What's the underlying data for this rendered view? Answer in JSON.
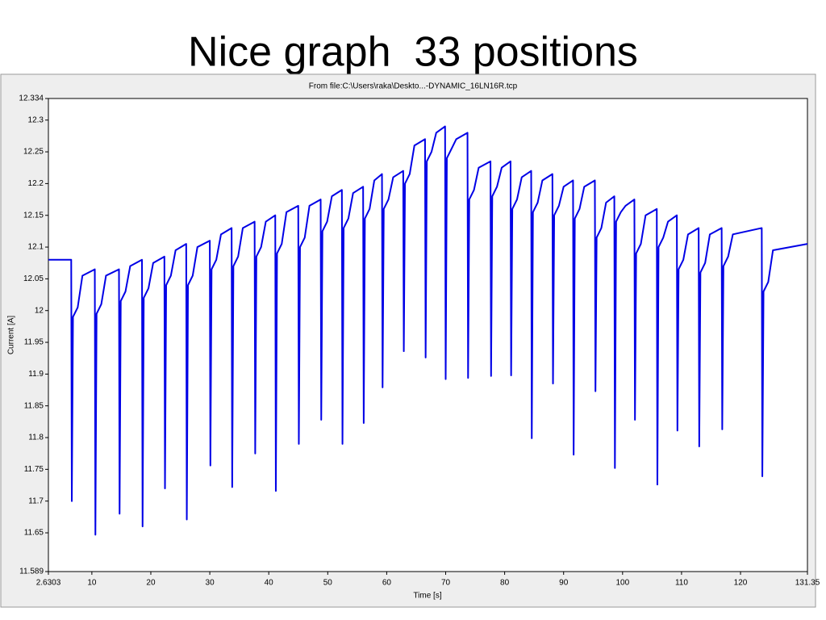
{
  "title": "Nice graph  33 positions",
  "chart_data": {
    "type": "line",
    "title": "From file:C:\\Users\\raka\\Deskto...-DYNAMIC_16LN16R.tcp",
    "x_label": "Time [s]",
    "y_label": "Current [A]",
    "xlim": [
      2.6303,
      131.35
    ],
    "xticks": [
      2.6303,
      10,
      20,
      30,
      40,
      50,
      60,
      70,
      80,
      90,
      100,
      110,
      120,
      131.35
    ],
    "ylim": [
      11.589,
      12.334
    ],
    "yticks": [
      11.589,
      11.65,
      11.7,
      11.75,
      11.8,
      11.85,
      11.9,
      11.95,
      12,
      12.05,
      12.1,
      12.15,
      12.2,
      12.25,
      12.3,
      12.334
    ],
    "x": [
      2.6303,
      6.5,
      6.6,
      6.8,
      7.6,
      8.4,
      10.5,
      10.6,
      10.8,
      11.6,
      12.4,
      14.6,
      14.7,
      14.9,
      15.7,
      16.5,
      18.5,
      18.6,
      18.8,
      19.6,
      20.4,
      22.3,
      22.4,
      22.6,
      23.4,
      24.2,
      26.0,
      26.1,
      26.3,
      27.1,
      27.9,
      30.0,
      30.1,
      30.3,
      31.1,
      31.9,
      33.7,
      33.8,
      34.0,
      34.8,
      35.6,
      37.6,
      37.7,
      37.9,
      38.7,
      39.5,
      41.1,
      41.2,
      41.4,
      42.2,
      43.0,
      45.0,
      45.1,
      45.3,
      46.1,
      46.9,
      48.8,
      48.9,
      49.1,
      49.9,
      50.7,
      52.4,
      52.5,
      52.7,
      53.5,
      54.3,
      56.0,
      56.1,
      56.3,
      57.1,
      57.9,
      59.2,
      59.3,
      59.5,
      60.3,
      61.1,
      62.8,
      62.9,
      63.1,
      63.9,
      64.7,
      66.5,
      66.6,
      66.8,
      67.6,
      68.4,
      69.9,
      70.0,
      70.2,
      71.0,
      71.8,
      73.7,
      73.8,
      74.0,
      74.8,
      75.6,
      77.6,
      77.7,
      77.9,
      78.7,
      79.5,
      81.0,
      81.1,
      81.3,
      82.1,
      82.9,
      84.5,
      84.6,
      84.8,
      85.6,
      86.4,
      88.1,
      88.2,
      88.4,
      89.2,
      90.0,
      91.6,
      91.7,
      91.9,
      92.7,
      93.5,
      95.3,
      95.4,
      95.6,
      96.4,
      97.2,
      98.6,
      98.7,
      98.9,
      99.7,
      100.5,
      102.0,
      102.1,
      102.3,
      103.1,
      103.9,
      105.8,
      105.9,
      106.1,
      106.9,
      107.7,
      109.2,
      109.3,
      109.5,
      110.3,
      111.1,
      112.9,
      113.0,
      113.2,
      114.0,
      114.8,
      116.8,
      116.9,
      117.1,
      117.9,
      118.7,
      123.6,
      123.7,
      123.9,
      124.7,
      125.5,
      131.35
    ],
    "series": [
      {
        "color": "#0000e6",
        "values": [
          12.08,
          12.08,
          11.7,
          11.99,
          12.005,
          12.055,
          12.065,
          11.647,
          11.995,
          12.01,
          12.055,
          12.065,
          11.68,
          12.015,
          12.03,
          12.07,
          12.08,
          11.66,
          12.02,
          12.035,
          12.075,
          12.085,
          11.72,
          12.04,
          12.055,
          12.095,
          12.105,
          11.671,
          12.04,
          12.055,
          12.1,
          12.11,
          11.756,
          12.065,
          12.08,
          12.12,
          12.13,
          11.722,
          12.07,
          12.085,
          12.13,
          12.14,
          11.775,
          12.085,
          12.1,
          12.14,
          12.15,
          11.716,
          12.09,
          12.105,
          12.155,
          12.165,
          11.79,
          12.1,
          12.115,
          12.165,
          12.175,
          11.828,
          12.125,
          12.14,
          12.18,
          12.19,
          11.79,
          12.13,
          12.145,
          12.185,
          12.195,
          11.823,
          12.145,
          12.16,
          12.205,
          12.215,
          11.879,
          12.16,
          12.175,
          12.21,
          12.22,
          11.936,
          12.2,
          12.215,
          12.26,
          12.27,
          11.926,
          12.235,
          12.25,
          12.28,
          12.29,
          11.892,
          12.24,
          12.255,
          12.27,
          12.28,
          11.894,
          12.175,
          12.19,
          12.225,
          12.235,
          11.897,
          12.18,
          12.195,
          12.225,
          12.235,
          11.898,
          12.16,
          12.175,
          12.21,
          12.22,
          11.799,
          12.155,
          12.17,
          12.205,
          12.215,
          11.885,
          12.15,
          12.165,
          12.195,
          12.205,
          11.773,
          12.145,
          12.16,
          12.195,
          12.205,
          11.873,
          12.115,
          12.13,
          12.17,
          12.18,
          11.752,
          12.14,
          12.155,
          12.165,
          12.175,
          11.828,
          12.09,
          12.105,
          12.15,
          12.16,
          11.726,
          12.1,
          12.115,
          12.14,
          12.15,
          11.811,
          12.065,
          12.08,
          12.12,
          12.13,
          11.786,
          12.06,
          12.075,
          12.12,
          12.13,
          11.813,
          12.07,
          12.085,
          12.12,
          12.13,
          11.739,
          12.03,
          12.045,
          12.095,
          12.105
        ]
      }
    ]
  }
}
